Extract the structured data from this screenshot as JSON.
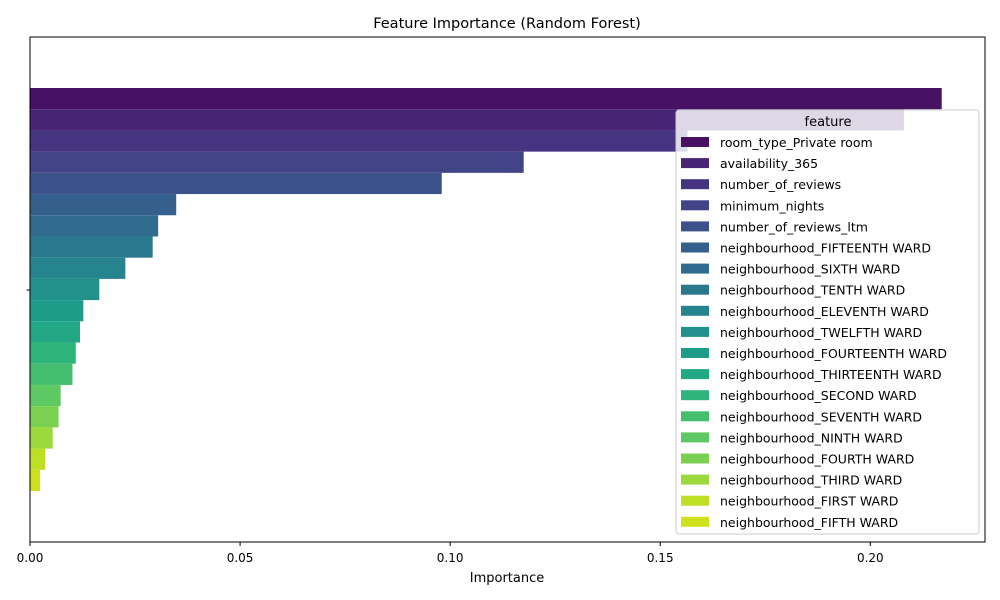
{
  "chart_data": {
    "type": "bar",
    "orientation": "horizontal",
    "title": "Feature Importance (Random Forest)",
    "xlabel": "Importance",
    "ylabel": "",
    "xlim": [
      0,
      0.2273
    ],
    "xticks": [
      0.0,
      0.05,
      0.1,
      0.15,
      0.2
    ],
    "xtick_labels": [
      "0.00",
      "0.05",
      "0.10",
      "0.15",
      "0.20"
    ],
    "grid": false,
    "legend": {
      "title": "feature",
      "placement": "right"
    },
    "series": [
      {
        "name": "room_type_Private room",
        "value": 0.217,
        "color": "#471164"
      },
      {
        "name": "availability_365",
        "value": 0.208,
        "color": "#482475"
      },
      {
        "name": "number_of_reviews",
        "value": 0.1565,
        "color": "#463480"
      },
      {
        "name": "minimum_nights",
        "value": 0.1175,
        "color": "#414487"
      },
      {
        "name": "number_of_reviews_ltm",
        "value": 0.098,
        "color": "#3b528b"
      },
      {
        "name": "neighbourhood_FIFTEENTH WARD",
        "value": 0.0348,
        "color": "#355f8d"
      },
      {
        "name": "neighbourhood_SIXTH WARD",
        "value": 0.0305,
        "color": "#2f6c8e"
      },
      {
        "name": "neighbourhood_TENTH WARD",
        "value": 0.0292,
        "color": "#2a788e"
      },
      {
        "name": "neighbourhood_ELEVENTH WARD",
        "value": 0.0227,
        "color": "#25848e"
      },
      {
        "name": "neighbourhood_TWELFTH WARD",
        "value": 0.0165,
        "color": "#21918c"
      },
      {
        "name": "neighbourhood_FOURTEENTH WARD",
        "value": 0.0127,
        "color": "#1e9c89"
      },
      {
        "name": "neighbourhood_THIRTEENTH WARD",
        "value": 0.0119,
        "color": "#22a884"
      },
      {
        "name": "neighbourhood_SECOND WARD",
        "value": 0.0109,
        "color": "#2fb47c"
      },
      {
        "name": "neighbourhood_SEVENTH WARD",
        "value": 0.0101,
        "color": "#44bf70"
      },
      {
        "name": "neighbourhood_NINTH WARD",
        "value": 0.0073,
        "color": "#5ec962"
      },
      {
        "name": "neighbourhood_FOURTH WARD",
        "value": 0.0068,
        "color": "#7ad151"
      },
      {
        "name": "neighbourhood_THIRD WARD",
        "value": 0.0054,
        "color": "#9bd93c"
      },
      {
        "name": "neighbourhood_FIRST WARD",
        "value": 0.0036,
        "color": "#bddf26"
      },
      {
        "name": "neighbourhood_FIFTH WARD",
        "value": 0.0024,
        "color": "#cfe11c"
      }
    ]
  }
}
